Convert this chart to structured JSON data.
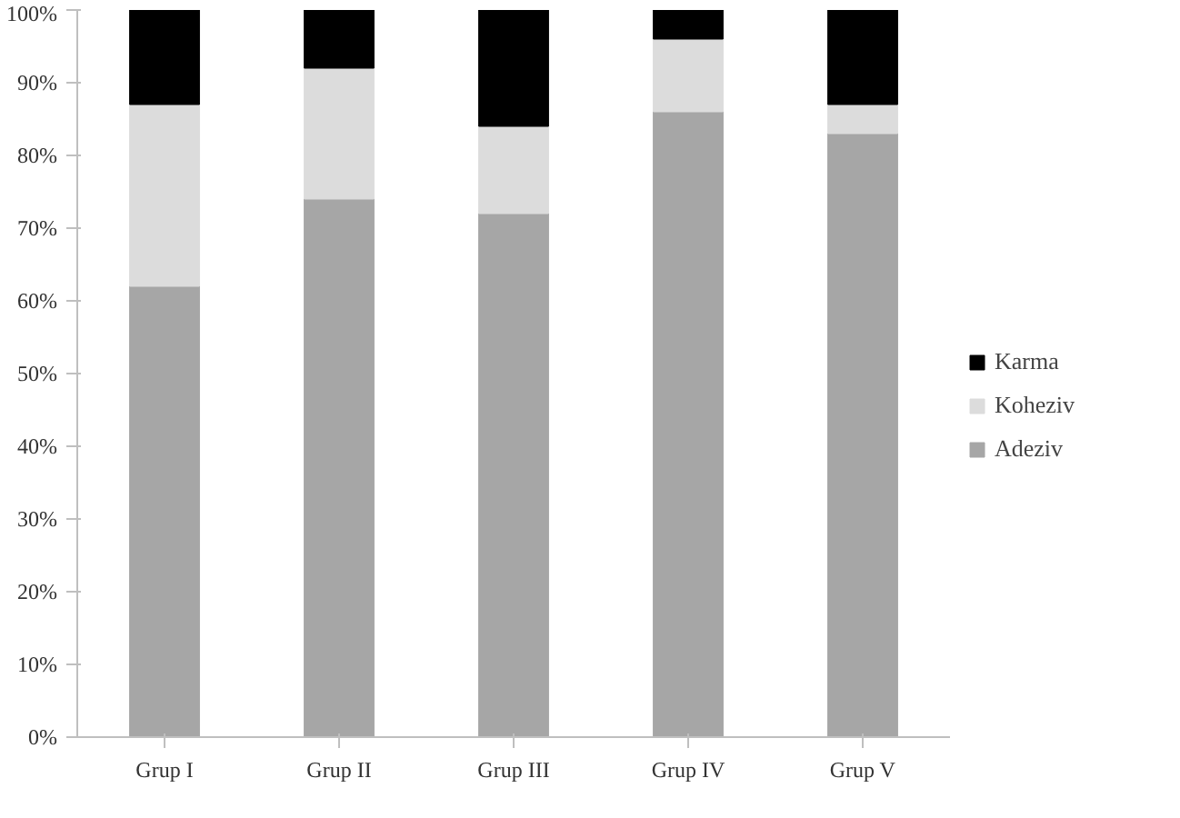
{
  "chart_data": {
    "type": "bar",
    "stacked": true,
    "categories": [
      "Grup I",
      "Grup II",
      "Grup III",
      "Grup IV",
      "Grup V"
    ],
    "series": [
      {
        "name": "Adeziv",
        "color": "#a6a6a6",
        "values": [
          62,
          74,
          72,
          86,
          83
        ]
      },
      {
        "name": "Koheziv",
        "color": "#dcdcdc",
        "values": [
          25,
          18,
          12,
          10,
          4
        ]
      },
      {
        "name": "Karma",
        "color": "#000000",
        "values": [
          13,
          8,
          16,
          4,
          13
        ]
      }
    ],
    "ylim": [
      0,
      100
    ],
    "yticks": [
      {
        "value": 0,
        "label": "0%"
      },
      {
        "value": 10,
        "label": "10%"
      },
      {
        "value": 20,
        "label": "20%"
      },
      {
        "value": 30,
        "label": "30%"
      },
      {
        "value": 40,
        "label": "40%"
      },
      {
        "value": 50,
        "label": "50%"
      },
      {
        "value": 60,
        "label": "60%"
      },
      {
        "value": 70,
        "label": "70%"
      },
      {
        "value": 80,
        "label": "80%"
      },
      {
        "value": 90,
        "label": "90%"
      },
      {
        "value": 100,
        "label": "100%"
      }
    ],
    "grid": false,
    "legend": "right"
  }
}
